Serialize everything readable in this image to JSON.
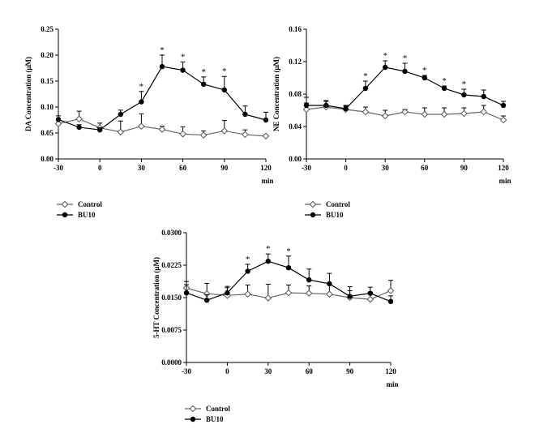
{
  "chart_data": [
    {
      "type": "line",
      "ylabel": "DA Concentration (μM)",
      "xunit": "min",
      "x": [
        -30,
        -15,
        0,
        15,
        30,
        45,
        60,
        75,
        90,
        105,
        120
      ],
      "xticks": [
        -30,
        0,
        30,
        60,
        90,
        120
      ],
      "xlim": [
        -30,
        120
      ],
      "ylim": [
        0,
        0.25
      ],
      "yticks": [
        "0.00",
        "0.05",
        "0.10",
        "0.15",
        "0.20",
        "0.25"
      ],
      "series": [
        {
          "name": "Control",
          "marker": "diamond-open",
          "values": [
            0.068,
            0.077,
            0.06,
            0.052,
            0.063,
            0.057,
            0.048,
            0.046,
            0.054,
            0.047,
            0.044
          ],
          "errors": [
            0.006,
            0.015,
            0.009,
            0.021,
            0.024,
            0.006,
            0.014,
            0.008,
            0.02,
            0.009,
            0.002
          ]
        },
        {
          "name": "BU10",
          "marker": "circle-filled",
          "values": [
            0.076,
            0.061,
            0.056,
            0.086,
            0.11,
            0.178,
            0.171,
            0.144,
            0.133,
            0.086,
            0.075
          ],
          "errors": [
            0.007,
            0.005,
            0.004,
            0.008,
            0.02,
            0.022,
            0.016,
            0.014,
            0.026,
            0.016,
            0.015
          ]
        }
      ],
      "stars": [
        30,
        45,
        60,
        75,
        90
      ],
      "star_symbol": "*",
      "legend": [
        "Control",
        "BU10"
      ]
    },
    {
      "type": "line",
      "ylabel": "NE Concentration (μM)",
      "xunit": "min",
      "x": [
        -30,
        -15,
        0,
        15,
        30,
        45,
        60,
        75,
        90,
        105,
        120
      ],
      "xticks": [
        -30,
        0,
        30,
        60,
        90,
        120
      ],
      "xlim": [
        -30,
        120
      ],
      "ylim": [
        0,
        0.16
      ],
      "yticks": [
        "0.00",
        "0.04",
        "0.08",
        "0.12",
        "0.16"
      ],
      "series": [
        {
          "name": "Control",
          "marker": "diamond-open",
          "values": [
            0.061,
            0.064,
            0.061,
            0.058,
            0.053,
            0.058,
            0.055,
            0.055,
            0.056,
            0.058,
            0.048
          ],
          "errors": [
            0.008,
            0.008,
            0.004,
            0.006,
            0.007,
            0.003,
            0.008,
            0.008,
            0.007,
            0.008,
            0.005
          ]
        },
        {
          "name": "BU10",
          "marker": "circle-filled",
          "values": [
            0.066,
            0.066,
            0.062,
            0.087,
            0.113,
            0.108,
            0.1,
            0.087,
            0.079,
            0.077,
            0.066
          ],
          "errors": [
            0.01,
            0.005,
            0.004,
            0.009,
            0.008,
            0.01,
            0.003,
            0.003,
            0.007,
            0.008,
            0.005
          ]
        }
      ],
      "stars": [
        15,
        30,
        45,
        60,
        75,
        90
      ],
      "star_symbol": "*",
      "legend": [
        "Control",
        "BU10"
      ]
    },
    {
      "type": "line",
      "ylabel": "5-HT Concentration (μM)",
      "xunit": "min",
      "x": [
        -30,
        -15,
        0,
        15,
        30,
        45,
        60,
        75,
        90,
        105,
        120
      ],
      "xticks": [
        -30,
        0,
        30,
        60,
        90,
        120
      ],
      "xlim": [
        -30,
        120
      ],
      "ylim": [
        0,
        0.03
      ],
      "yticks": [
        "0.0000",
        "0.0075",
        "0.0150",
        "0.0225",
        "0.0300"
      ],
      "series": [
        {
          "name": "Control",
          "marker": "diamond-open",
          "values": [
            0.0172,
            0.0159,
            0.0155,
            0.0158,
            0.0149,
            0.0161,
            0.016,
            0.0158,
            0.015,
            0.0146,
            0.0166
          ],
          "errors": [
            0.0015,
            0.0024,
            0.0021,
            0.0021,
            0.0032,
            0.0018,
            0.0017,
            0.0025,
            0.0016,
            0.0016,
            0.0024
          ]
        },
        {
          "name": "BU10",
          "marker": "circle-filled",
          "values": [
            0.0161,
            0.0144,
            0.0161,
            0.0211,
            0.0234,
            0.0219,
            0.0191,
            0.0182,
            0.0153,
            0.016,
            0.0141
          ],
          "errors": [
            0.0019,
            0.0013,
            0.0012,
            0.0016,
            0.0017,
            0.0027,
            0.0025,
            0.0024,
            0.0022,
            0.0014,
            0.0013
          ]
        }
      ],
      "stars": [
        15,
        30,
        45
      ],
      "star_symbol": "*",
      "legend": [
        "Control",
        "BU10"
      ]
    }
  ]
}
